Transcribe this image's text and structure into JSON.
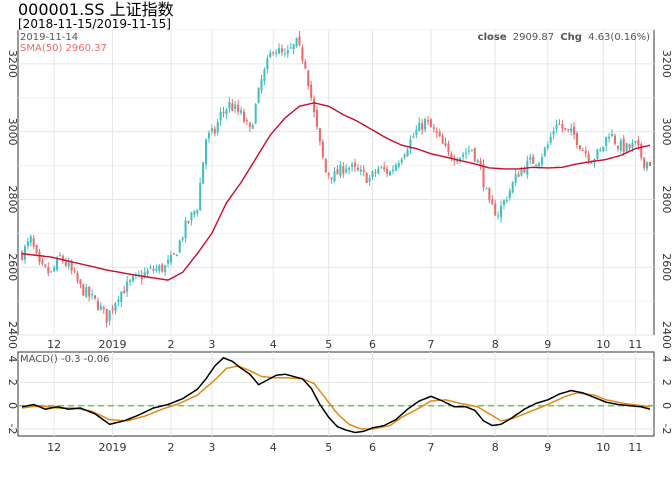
{
  "title": "000001.SS 上证指数",
  "subtitle": "[2018-11-15/2019-11-15]",
  "colors": {
    "up": "#3fbfbf",
    "down": "#ec6a6a",
    "sma": "#cc0a2a",
    "macd": "#000000",
    "signal": "#e08a10",
    "zero": "#77c466",
    "frame": "#333333",
    "grid": "#e6e6e6"
  },
  "price_panel": {
    "date_label": "2019-11-14",
    "sma_label": "SMA(50) 2960.37",
    "close_label": "close",
    "close_value": "2909.87",
    "chg_label": "Chg",
    "chg_value": "4.63(0.16%)"
  },
  "macd_panel": {
    "label": "MACD() -0.3 -0.06"
  },
  "chart_data": [
    {
      "type": "candlestick",
      "title": "000001.SS 上证指数",
      "ylim": [
        2400,
        3300
      ],
      "y_ticks": [
        2400,
        2600,
        2800,
        3000,
        3200
      ],
      "x_ticks": [
        {
          "label": "12",
          "i": 11
        },
        {
          "label": "2019",
          "i": 31
        },
        {
          "label": "2",
          "i": 51
        },
        {
          "label": "3",
          "i": 65
        },
        {
          "label": "4",
          "i": 86
        },
        {
          "label": "5",
          "i": 105
        },
        {
          "label": "6",
          "i": 120
        },
        {
          "label": "7",
          "i": 140
        },
        {
          "label": "8",
          "i": 162
        },
        {
          "label": "9",
          "i": 180
        },
        {
          "label": "10",
          "i": 199
        },
        {
          "label": "11",
          "i": 210
        }
      ],
      "anchors": [
        [
          0,
          2640
        ],
        [
          3,
          2680
        ],
        [
          6,
          2600
        ],
        [
          10,
          2580
        ],
        [
          13,
          2630
        ],
        [
          16,
          2600
        ],
        [
          20,
          2540
        ],
        [
          26,
          2490
        ],
        [
          29,
          2450
        ],
        [
          33,
          2520
        ],
        [
          38,
          2560
        ],
        [
          44,
          2590
        ],
        [
          49,
          2600
        ],
        [
          52,
          2630
        ],
        [
          56,
          2720
        ],
        [
          60,
          2780
        ],
        [
          63,
          2980
        ],
        [
          66,
          3000
        ],
        [
          68,
          3050
        ],
        [
          71,
          3080
        ],
        [
          75,
          3050
        ],
        [
          78,
          3000
        ],
        [
          82,
          3150
        ],
        [
          86,
          3250
        ],
        [
          90,
          3220
        ],
        [
          94,
          3260
        ],
        [
          97,
          3200
        ],
        [
          100,
          3050
        ],
        [
          102,
          2960
        ],
        [
          104,
          2880
        ],
        [
          107,
          2870
        ],
        [
          111,
          2900
        ],
        [
          115,
          2880
        ],
        [
          119,
          2860
        ],
        [
          122,
          2890
        ],
        [
          126,
          2880
        ],
        [
          129,
          2920
        ],
        [
          132,
          2960
        ],
        [
          135,
          3000
        ],
        [
          138,
          3030
        ],
        [
          142,
          2990
        ],
        [
          146,
          2930
        ],
        [
          150,
          2930
        ],
        [
          154,
          2950
        ],
        [
          157,
          2890
        ],
        [
          160,
          2780
        ],
        [
          163,
          2760
        ],
        [
          166,
          2810
        ],
        [
          170,
          2880
        ],
        [
          174,
          2910
        ],
        [
          177,
          2920
        ],
        [
          180,
          2960
        ],
        [
          183,
          3030
        ],
        [
          186,
          3000
        ],
        [
          189,
          2990
        ],
        [
          192,
          2950
        ],
        [
          195,
          2920
        ],
        [
          198,
          2940
        ],
        [
          201,
          3000
        ],
        [
          204,
          2960
        ],
        [
          207,
          2950
        ],
        [
          210,
          2960
        ],
        [
          213,
          2910
        ],
        [
          215,
          2910
        ]
      ],
      "sma": {
        "name": "SMA(50)",
        "points": [
          [
            0,
            2640
          ],
          [
            10,
            2630
          ],
          [
            20,
            2610
          ],
          [
            30,
            2590
          ],
          [
            40,
            2575
          ],
          [
            50,
            2562
          ],
          [
            55,
            2585
          ],
          [
            60,
            2640
          ],
          [
            65,
            2700
          ],
          [
            70,
            2790
          ],
          [
            75,
            2850
          ],
          [
            80,
            2920
          ],
          [
            85,
            2990
          ],
          [
            90,
            3040
          ],
          [
            95,
            3075
          ],
          [
            100,
            3085
          ],
          [
            105,
            3075
          ],
          [
            110,
            3050
          ],
          [
            115,
            3030
          ],
          [
            120,
            3005
          ],
          [
            125,
            2980
          ],
          [
            130,
            2960
          ],
          [
            135,
            2950
          ],
          [
            140,
            2935
          ],
          [
            145,
            2925
          ],
          [
            150,
            2915
          ],
          [
            155,
            2905
          ],
          [
            160,
            2893
          ],
          [
            165,
            2890
          ],
          [
            170,
            2890
          ],
          [
            175,
            2895
          ],
          [
            180,
            2893
          ],
          [
            185,
            2895
          ],
          [
            190,
            2905
          ],
          [
            195,
            2912
          ],
          [
            200,
            2918
          ],
          [
            205,
            2930
          ],
          [
            210,
            2950
          ],
          [
            215,
            2960
          ]
        ]
      }
    },
    {
      "type": "line",
      "title": "MACD()",
      "ylim": [
        -2.6,
        4.6
      ],
      "y_ticks": [
        -2,
        0,
        2,
        4
      ],
      "series": [
        {
          "name": "macd",
          "points": [
            [
              0,
              -0.1
            ],
            [
              4,
              0.1
            ],
            [
              8,
              -0.3
            ],
            [
              12,
              -0.1
            ],
            [
              16,
              -0.3
            ],
            [
              20,
              -0.2
            ],
            [
              25,
              -0.7
            ],
            [
              30,
              -1.6
            ],
            [
              35,
              -1.3
            ],
            [
              40,
              -0.8
            ],
            [
              45,
              -0.2
            ],
            [
              50,
              0.1
            ],
            [
              55,
              0.6
            ],
            [
              60,
              1.4
            ],
            [
              63,
              2.3
            ],
            [
              66,
              3.4
            ],
            [
              69,
              4.1
            ],
            [
              72,
              3.8
            ],
            [
              75,
              3.2
            ],
            [
              78,
              2.7
            ],
            [
              81,
              1.8
            ],
            [
              84,
              2.2
            ],
            [
              87,
              2.6
            ],
            [
              90,
              2.7
            ],
            [
              93,
              2.5
            ],
            [
              96,
              2.3
            ],
            [
              99,
              1.5
            ],
            [
              102,
              0.1
            ],
            [
              105,
              -1.0
            ],
            [
              108,
              -1.8
            ],
            [
              111,
              -2.1
            ],
            [
              114,
              -2.3
            ],
            [
              117,
              -2.2
            ],
            [
              120,
              -1.9
            ],
            [
              124,
              -1.7
            ],
            [
              128,
              -1.2
            ],
            [
              132,
              -0.3
            ],
            [
              136,
              0.4
            ],
            [
              140,
              0.8
            ],
            [
              144,
              0.4
            ],
            [
              148,
              -0.1
            ],
            [
              152,
              -0.1
            ],
            [
              155,
              -0.4
            ],
            [
              158,
              -1.3
            ],
            [
              161,
              -1.7
            ],
            [
              164,
              -1.6
            ],
            [
              168,
              -1.0
            ],
            [
              172,
              -0.3
            ],
            [
              176,
              0.2
            ],
            [
              180,
              0.5
            ],
            [
              184,
              1.0
            ],
            [
              188,
              1.3
            ],
            [
              192,
              1.1
            ],
            [
              196,
              0.7
            ],
            [
              200,
              0.3
            ],
            [
              204,
              0.1
            ],
            [
              208,
              0.0
            ],
            [
              212,
              -0.1
            ],
            [
              215,
              -0.3
            ]
          ]
        },
        {
          "name": "signal",
          "points": [
            [
              0,
              -0.2
            ],
            [
              6,
              0.0
            ],
            [
              12,
              -0.2
            ],
            [
              18,
              -0.2
            ],
            [
              24,
              -0.5
            ],
            [
              30,
              -1.2
            ],
            [
              36,
              -1.3
            ],
            [
              42,
              -0.9
            ],
            [
              48,
              -0.3
            ],
            [
              54,
              0.2
            ],
            [
              60,
              0.9
            ],
            [
              66,
              2.2
            ],
            [
              70,
              3.2
            ],
            [
              74,
              3.4
            ],
            [
              78,
              3.0
            ],
            [
              82,
              2.5
            ],
            [
              86,
              2.4
            ],
            [
              90,
              2.4
            ],
            [
              96,
              2.3
            ],
            [
              100,
              1.9
            ],
            [
              104,
              0.6
            ],
            [
              108,
              -0.7
            ],
            [
              112,
              -1.6
            ],
            [
              116,
              -2.0
            ],
            [
              120,
              -2.0
            ],
            [
              126,
              -1.7
            ],
            [
              130,
              -1.0
            ],
            [
              136,
              -0.2
            ],
            [
              140,
              0.4
            ],
            [
              145,
              0.5
            ],
            [
              150,
              0.2
            ],
            [
              156,
              -0.1
            ],
            [
              160,
              -0.7
            ],
            [
              164,
              -1.3
            ],
            [
              168,
              -1.1
            ],
            [
              174,
              -0.5
            ],
            [
              180,
              0.1
            ],
            [
              186,
              0.8
            ],
            [
              190,
              1.1
            ],
            [
              196,
              0.9
            ],
            [
              200,
              0.5
            ],
            [
              206,
              0.2
            ],
            [
              212,
              0.0
            ],
            [
              215,
              -0.1
            ]
          ]
        }
      ],
      "zero_line": 0
    }
  ]
}
